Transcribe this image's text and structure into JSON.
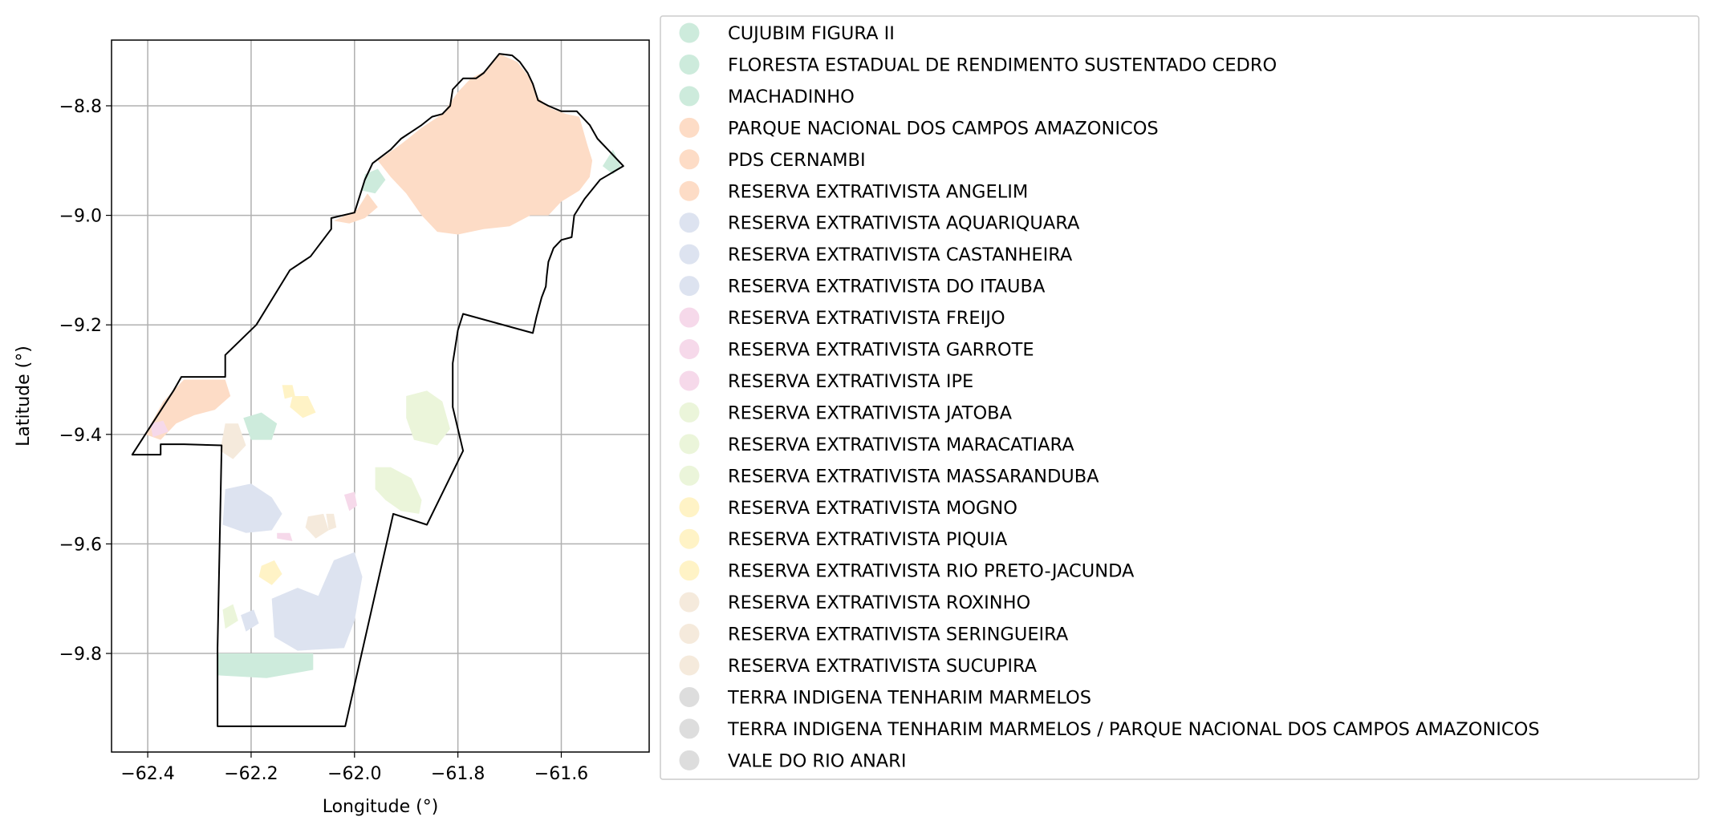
{
  "chart_data": {
    "type": "map",
    "xlabel": "Longitude (°)",
    "ylabel": "Latitude (°)",
    "xlim": [
      -62.47,
      -61.43
    ],
    "ylim": [
      -9.98,
      -8.68
    ],
    "x_ticks": [
      {
        "value": -62.4,
        "label": "−62.4"
      },
      {
        "value": -62.2,
        "label": "−62.2"
      },
      {
        "value": -62.0,
        "label": "−62.0"
      },
      {
        "value": -61.8,
        "label": "−61.8"
      },
      {
        "value": -61.6,
        "label": "−61.6"
      }
    ],
    "y_ticks": [
      {
        "value": -8.8,
        "label": "−8.8"
      },
      {
        "value": -9.0,
        "label": "−9.0"
      },
      {
        "value": -9.2,
        "label": "−9.2"
      },
      {
        "value": -9.4,
        "label": "−9.4"
      },
      {
        "value": -9.6,
        "label": "−9.6"
      },
      {
        "value": -9.8,
        "label": "−9.8"
      }
    ],
    "grid": true,
    "legend_position": "right",
    "legend": [
      {
        "label": "CUJUBIM FIGURA II",
        "color": "#cdebdc"
      },
      {
        "label": "FLORESTA ESTADUAL DE RENDIMENTO SUSTENTADO CEDRO",
        "color": "#cdebdc"
      },
      {
        "label": "MACHADINHO",
        "color": "#cdebdc"
      },
      {
        "label": "PARQUE NACIONAL DOS CAMPOS AMAZONICOS",
        "color": "#fddcc6"
      },
      {
        "label": "PDS CERNAMBI",
        "color": "#fddcc6"
      },
      {
        "label": "RESERVA EXTRATIVISTA ANGELIM",
        "color": "#fddcc6"
      },
      {
        "label": "RESERVA EXTRATIVISTA AQUARIQUARA",
        "color": "#dde3f0"
      },
      {
        "label": "RESERVA EXTRATIVISTA CASTANHEIRA",
        "color": "#dde3f0"
      },
      {
        "label": "RESERVA EXTRATIVISTA DO ITAUBA",
        "color": "#dde3f0"
      },
      {
        "label": "RESERVA EXTRATIVISTA FREIJO",
        "color": "#f6d9ea"
      },
      {
        "label": "RESERVA EXTRATIVISTA GARROTE",
        "color": "#f6d9ea"
      },
      {
        "label": "RESERVA EXTRATIVISTA IPE",
        "color": "#f6d9ea"
      },
      {
        "label": "RESERVA EXTRATIVISTA JATOBA",
        "color": "#ebf5da"
      },
      {
        "label": "RESERVA EXTRATIVISTA MARACATIARA",
        "color": "#ebf5da"
      },
      {
        "label": "RESERVA EXTRATIVISTA MASSARANDUBA",
        "color": "#ebf5da"
      },
      {
        "label": "RESERVA EXTRATIVISTA MOGNO",
        "color": "#fff3c6"
      },
      {
        "label": "RESERVA EXTRATIVISTA PIQUIA",
        "color": "#fff3c6"
      },
      {
        "label": "RESERVA EXTRATIVISTA RIO PRETO-JACUNDA",
        "color": "#fff3c6"
      },
      {
        "label": "RESERVA EXTRATIVISTA ROXINHO",
        "color": "#f5eadc"
      },
      {
        "label": "RESERVA EXTRATIVISTA SERINGUEIRA",
        "color": "#f5eadc"
      },
      {
        "label": "RESERVA EXTRATIVISTA SUCUPIRA",
        "color": "#f5eadc"
      },
      {
        "label": "TERRA INDIGENA TENHARIM MARMELOS",
        "color": "#dddddd"
      },
      {
        "label": "TERRA INDIGENA TENHARIM MARMELOS / PARQUE NACIONAL DOS CAMPOS AMAZONICOS",
        "color": "#dddddd"
      },
      {
        "label": "VALE DO RIO ANARI",
        "color": "#dddddd"
      }
    ],
    "boundary": [
      [
        -62.43,
        -9.437
      ],
      [
        -62.35,
        -9.32
      ],
      [
        -62.335,
        -9.295
      ],
      [
        -62.25,
        -9.295
      ],
      [
        -62.25,
        -9.255
      ],
      [
        -62.19,
        -9.2
      ],
      [
        -62.125,
        -9.1
      ],
      [
        -62.085,
        -9.075
      ],
      [
        -62.045,
        -9.025
      ],
      [
        -62.045,
        -9.005
      ],
      [
        -62.0,
        -8.995
      ],
      [
        -61.98,
        -8.935
      ],
      [
        -61.965,
        -8.905
      ],
      [
        -61.93,
        -8.88
      ],
      [
        -61.91,
        -8.86
      ],
      [
        -61.87,
        -8.835
      ],
      [
        -61.85,
        -8.82
      ],
      [
        -61.83,
        -8.815
      ],
      [
        -61.815,
        -8.8
      ],
      [
        -61.81,
        -8.77
      ],
      [
        -61.79,
        -8.75
      ],
      [
        -61.765,
        -8.75
      ],
      [
        -61.75,
        -8.74
      ],
      [
        -61.72,
        -8.705
      ],
      [
        -61.695,
        -8.708
      ],
      [
        -61.68,
        -8.72
      ],
      [
        -61.665,
        -8.74
      ],
      [
        -61.655,
        -8.76
      ],
      [
        -61.645,
        -8.79
      ],
      [
        -61.625,
        -8.8
      ],
      [
        -61.6,
        -8.81
      ],
      [
        -61.57,
        -8.81
      ],
      [
        -61.545,
        -8.835
      ],
      [
        -61.53,
        -8.86
      ],
      [
        -61.51,
        -8.88
      ],
      [
        -61.48,
        -8.91
      ],
      [
        -61.525,
        -8.935
      ],
      [
        -61.555,
        -8.97
      ],
      [
        -61.575,
        -9.0
      ],
      [
        -61.58,
        -9.04
      ],
      [
        -61.6,
        -9.045
      ],
      [
        -61.615,
        -9.06
      ],
      [
        -61.625,
        -9.085
      ],
      [
        -61.628,
        -9.11
      ],
      [
        -61.63,
        -9.13
      ],
      [
        -61.638,
        -9.15
      ],
      [
        -61.648,
        -9.185
      ],
      [
        -61.655,
        -9.215
      ],
      [
        -61.79,
        -9.18
      ],
      [
        -61.8,
        -9.21
      ],
      [
        -61.81,
        -9.27
      ],
      [
        -61.81,
        -9.35
      ],
      [
        -61.79,
        -9.43
      ],
      [
        -61.86,
        -9.565
      ],
      [
        -61.925,
        -9.545
      ],
      [
        -62.018,
        -9.933
      ],
      [
        -62.265,
        -9.933
      ],
      [
        -62.265,
        -9.79
      ],
      [
        -62.257,
        -9.42
      ],
      [
        -62.33,
        -9.418
      ],
      [
        -62.375,
        -9.418
      ],
      [
        -62.375,
        -9.437
      ],
      [
        -62.43,
        -9.437
      ]
    ],
    "regions": [
      {
        "category": "PARQUE NACIONAL DOS CAMPOS AMAZONICOS",
        "color": "#fddcc6",
        "points": [
          [
            -61.955,
            -8.9
          ],
          [
            -61.91,
            -8.87
          ],
          [
            -61.87,
            -8.84
          ],
          [
            -61.83,
            -8.815
          ],
          [
            -61.8,
            -8.775
          ],
          [
            -61.775,
            -8.75
          ],
          [
            -61.745,
            -8.735
          ],
          [
            -61.72,
            -8.705
          ],
          [
            -61.685,
            -8.72
          ],
          [
            -61.66,
            -8.75
          ],
          [
            -61.645,
            -8.785
          ],
          [
            -61.62,
            -8.805
          ],
          [
            -61.59,
            -8.815
          ],
          [
            -61.565,
            -8.82
          ],
          [
            -61.55,
            -8.87
          ],
          [
            -61.54,
            -8.9
          ],
          [
            -61.545,
            -8.93
          ],
          [
            -61.565,
            -8.955
          ],
          [
            -61.6,
            -8.975
          ],
          [
            -61.625,
            -9.0
          ],
          [
            -61.66,
            -9.0
          ],
          [
            -61.7,
            -9.02
          ],
          [
            -61.75,
            -9.025
          ],
          [
            -61.8,
            -9.035
          ],
          [
            -61.84,
            -9.03
          ],
          [
            -61.87,
            -9.0
          ],
          [
            -61.9,
            -8.96
          ],
          [
            -61.93,
            -8.93
          ]
        ]
      },
      {
        "category": "PDS CERNAMBI",
        "color": "#fddcc6",
        "points": [
          [
            -62.04,
            -9.01
          ],
          [
            -61.995,
            -8.99
          ],
          [
            -61.975,
            -8.96
          ],
          [
            -61.955,
            -8.985
          ],
          [
            -61.98,
            -9.005
          ],
          [
            -62.01,
            -9.015
          ]
        ]
      },
      {
        "category": "RESERVA EXTRATIVISTA ANGELIM",
        "color": "#fddcc6",
        "points": [
          [
            -62.405,
            -9.4
          ],
          [
            -62.37,
            -9.34
          ],
          [
            -62.33,
            -9.3
          ],
          [
            -62.25,
            -9.3
          ],
          [
            -62.24,
            -9.33
          ],
          [
            -62.27,
            -9.355
          ],
          [
            -62.31,
            -9.365
          ],
          [
            -62.345,
            -9.38
          ],
          [
            -62.375,
            -9.41
          ]
        ]
      },
      {
        "category": "CUJUBIM FIGURA II",
        "color": "#cdebdc",
        "points": [
          [
            -61.98,
            -8.925
          ],
          [
            -61.955,
            -8.915
          ],
          [
            -61.94,
            -8.935
          ],
          [
            -61.96,
            -8.96
          ],
          [
            -61.985,
            -8.955
          ]
        ]
      },
      {
        "category": "MACHADINHO",
        "color": "#cdebdc",
        "points": [
          [
            -61.5,
            -8.88
          ],
          [
            -61.485,
            -8.91
          ],
          [
            -61.5,
            -8.925
          ],
          [
            -61.52,
            -8.91
          ]
        ]
      },
      {
        "category": "FLORESTA ESTADUAL DE RENDIMENTO SUSTENTADO CEDRO",
        "color": "#cdebdc",
        "points": [
          [
            -62.215,
            -9.37
          ],
          [
            -62.18,
            -9.36
          ],
          [
            -62.15,
            -9.38
          ],
          [
            -62.16,
            -9.41
          ],
          [
            -62.2,
            -9.41
          ]
        ]
      },
      {
        "category": "CUJUBIM FIGURA II",
        "color": "#cdebdc",
        "points": [
          [
            -62.265,
            -9.8
          ],
          [
            -62.08,
            -9.8
          ],
          [
            -62.08,
            -9.83
          ],
          [
            -62.17,
            -9.845
          ],
          [
            -62.265,
            -9.84
          ]
        ]
      },
      {
        "category": "RESERVA EXTRATIVISTA AQUARIQUARA",
        "color": "#dde3f0",
        "points": [
          [
            -62.25,
            -9.5
          ],
          [
            -62.2,
            -9.49
          ],
          [
            -62.16,
            -9.515
          ],
          [
            -62.14,
            -9.545
          ],
          [
            -62.16,
            -9.575
          ],
          [
            -62.21,
            -9.58
          ],
          [
            -62.255,
            -9.565
          ]
        ]
      },
      {
        "category": "RESERVA EXTRATIVISTA CASTANHEIRA",
        "color": "#dde3f0",
        "points": [
          [
            -62.16,
            -9.7
          ],
          [
            -62.11,
            -9.68
          ],
          [
            -62.07,
            -9.695
          ],
          [
            -62.04,
            -9.63
          ],
          [
            -62.0,
            -9.615
          ],
          [
            -61.985,
            -9.66
          ],
          [
            -62.0,
            -9.74
          ],
          [
            -62.02,
            -9.79
          ],
          [
            -62.11,
            -9.795
          ],
          [
            -62.155,
            -9.77
          ]
        ]
      },
      {
        "category": "RESERVA EXTRATIVISTA DO ITAUBA",
        "color": "#dde3f0",
        "points": [
          [
            -62.22,
            -9.73
          ],
          [
            -62.195,
            -9.72
          ],
          [
            -62.185,
            -9.745
          ],
          [
            -62.21,
            -9.76
          ]
        ]
      },
      {
        "category": "RESERVA EXTRATIVISTA FREIJO",
        "color": "#f6d9ea",
        "points": [
          [
            -62.395,
            -9.38
          ],
          [
            -62.37,
            -9.375
          ],
          [
            -62.36,
            -9.395
          ],
          [
            -62.39,
            -9.405
          ]
        ]
      },
      {
        "category": "RESERVA EXTRATIVISTA GARROTE",
        "color": "#f6d9ea",
        "points": [
          [
            -62.15,
            -9.58
          ],
          [
            -62.125,
            -9.58
          ],
          [
            -62.12,
            -9.595
          ],
          [
            -62.15,
            -9.59
          ]
        ]
      },
      {
        "category": "RESERVA EXTRATIVISTA IPE",
        "color": "#f6d9ea",
        "points": [
          [
            -62.02,
            -9.51
          ],
          [
            -62.0,
            -9.505
          ],
          [
            -61.995,
            -9.53
          ],
          [
            -62.01,
            -9.54
          ]
        ]
      },
      {
        "category": "RESERVA EXTRATIVISTA JATOBA",
        "color": "#ebf5da",
        "points": [
          [
            -61.9,
            -9.33
          ],
          [
            -61.86,
            -9.32
          ],
          [
            -61.83,
            -9.34
          ],
          [
            -61.815,
            -9.39
          ],
          [
            -61.84,
            -9.42
          ],
          [
            -61.885,
            -9.41
          ],
          [
            -61.9,
            -9.37
          ]
        ]
      },
      {
        "category": "RESERVA EXTRATIVISTA MARACATIARA",
        "color": "#ebf5da",
        "points": [
          [
            -61.96,
            -9.46
          ],
          [
            -61.93,
            -9.46
          ],
          [
            -61.89,
            -9.48
          ],
          [
            -61.87,
            -9.52
          ],
          [
            -61.875,
            -9.545
          ],
          [
            -61.91,
            -9.54
          ],
          [
            -61.94,
            -9.52
          ],
          [
            -61.96,
            -9.5
          ]
        ]
      },
      {
        "category": "RESERVA EXTRATIVISTA MASSARANDUBA",
        "color": "#ebf5da",
        "points": [
          [
            -62.255,
            -9.72
          ],
          [
            -62.235,
            -9.71
          ],
          [
            -62.225,
            -9.74
          ],
          [
            -62.25,
            -9.755
          ]
        ]
      },
      {
        "category": "RESERVA EXTRATIVISTA MOGNO",
        "color": "#fff3c6",
        "points": [
          [
            -62.12,
            -9.33
          ],
          [
            -62.09,
            -9.33
          ],
          [
            -62.075,
            -9.36
          ],
          [
            -62.1,
            -9.37
          ],
          [
            -62.125,
            -9.35
          ]
        ]
      },
      {
        "category": "RESERVA EXTRATIVISTA PIQUIA",
        "color": "#fff3c6",
        "points": [
          [
            -62.18,
            -9.64
          ],
          [
            -62.155,
            -9.63
          ],
          [
            -62.14,
            -9.655
          ],
          [
            -62.16,
            -9.675
          ],
          [
            -62.185,
            -9.66
          ]
        ]
      },
      {
        "category": "RESERVA EXTRATIVISTA RIO PRETO-JACUNDA",
        "color": "#fff3c6",
        "points": [
          [
            -62.14,
            -9.31
          ],
          [
            -62.12,
            -9.31
          ],
          [
            -62.115,
            -9.33
          ],
          [
            -62.135,
            -9.335
          ]
        ]
      },
      {
        "category": "RESERVA EXTRATIVISTA ROXINHO",
        "color": "#f5eadc",
        "points": [
          [
            -62.25,
            -9.38
          ],
          [
            -62.225,
            -9.38
          ],
          [
            -62.21,
            -9.42
          ],
          [
            -62.235,
            -9.445
          ],
          [
            -62.26,
            -9.43
          ]
        ]
      },
      {
        "category": "RESERVA EXTRATIVISTA SERINGUEIRA",
        "color": "#f5eadc",
        "points": [
          [
            -62.09,
            -9.55
          ],
          [
            -62.06,
            -9.545
          ],
          [
            -62.05,
            -9.575
          ],
          [
            -62.075,
            -9.59
          ],
          [
            -62.095,
            -9.57
          ]
        ]
      },
      {
        "category": "RESERVA EXTRATIVISTA SUCUPIRA",
        "color": "#f5eadc",
        "points": [
          [
            -62.055,
            -9.545
          ],
          [
            -62.04,
            -9.545
          ],
          [
            -62.035,
            -9.57
          ],
          [
            -62.05,
            -9.575
          ]
        ]
      }
    ]
  }
}
